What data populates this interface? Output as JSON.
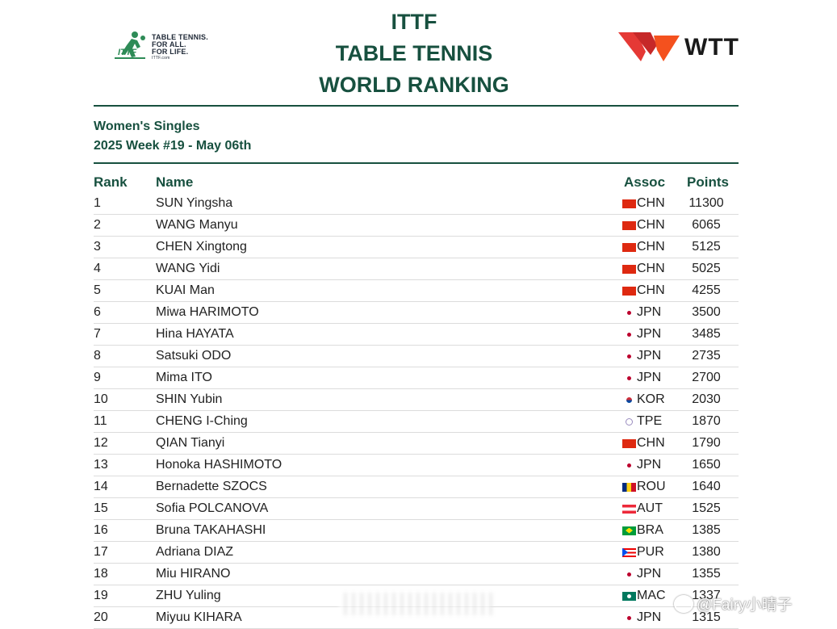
{
  "ittf_logo": {
    "icon": "ittf-player-icon",
    "tagline": [
      "TABLE TENNIS.",
      "FOR ALL.",
      "FOR LIFE."
    ],
    "url": "ITTF.com",
    "color": "#2e8b57"
  },
  "title": {
    "line1": "ITTF",
    "line2": "TABLE TENNIS",
    "line3": "WORLD RANKING",
    "color": "#17503f"
  },
  "wtt_logo": {
    "icon": "wtt-wing-icon",
    "text": "WTT",
    "color": "#e53935"
  },
  "subtitle": {
    "event": "Women's Singles",
    "week": "2025 Week #19 - May 06th"
  },
  "table": {
    "headers": {
      "rank": "Rank",
      "name": "Name",
      "assoc": "Assoc",
      "points": "Points"
    },
    "rows": [
      {
        "rank": "1",
        "name": "SUN Yingsha",
        "flag": "chn",
        "assoc": "CHN",
        "points": "11300"
      },
      {
        "rank": "2",
        "name": "WANG Manyu",
        "flag": "chn",
        "assoc": "CHN",
        "points": "6065"
      },
      {
        "rank": "3",
        "name": "CHEN Xingtong",
        "flag": "chn",
        "assoc": "CHN",
        "points": "5125"
      },
      {
        "rank": "4",
        "name": "WANG Yidi",
        "flag": "chn",
        "assoc": "CHN",
        "points": "5025"
      },
      {
        "rank": "5",
        "name": "KUAI Man",
        "flag": "chn",
        "assoc": "CHN",
        "points": "4255"
      },
      {
        "rank": "6",
        "name": "Miwa HARIMOTO",
        "flag": "jpn",
        "assoc": "JPN",
        "points": "3500"
      },
      {
        "rank": "7",
        "name": "Hina HAYATA",
        "flag": "jpn",
        "assoc": "JPN",
        "points": "3485"
      },
      {
        "rank": "8",
        "name": "Satsuki ODO",
        "flag": "jpn",
        "assoc": "JPN",
        "points": "2735"
      },
      {
        "rank": "9",
        "name": "Mima ITO",
        "flag": "jpn",
        "assoc": "JPN",
        "points": "2700"
      },
      {
        "rank": "10",
        "name": "SHIN Yubin",
        "flag": "kor",
        "assoc": "KOR",
        "points": "2030"
      },
      {
        "rank": "11",
        "name": "CHENG I-Ching",
        "flag": "tpe",
        "assoc": "TPE",
        "points": "1870"
      },
      {
        "rank": "12",
        "name": "QIAN Tianyi",
        "flag": "chn",
        "assoc": "CHN",
        "points": "1790"
      },
      {
        "rank": "13",
        "name": "Honoka HASHIMOTO",
        "flag": "jpn",
        "assoc": "JPN",
        "points": "1650"
      },
      {
        "rank": "14",
        "name": "Bernadette SZOCS",
        "flag": "rou",
        "assoc": "ROU",
        "points": "1640"
      },
      {
        "rank": "15",
        "name": "Sofia POLCANOVA",
        "flag": "aut",
        "assoc": "AUT",
        "points": "1525"
      },
      {
        "rank": "16",
        "name": "Bruna TAKAHASHI",
        "flag": "bra",
        "assoc": "BRA",
        "points": "1385"
      },
      {
        "rank": "17",
        "name": "Adriana DIAZ",
        "flag": "pur",
        "assoc": "PUR",
        "points": "1380"
      },
      {
        "rank": "18",
        "name": "Miu HIRANO",
        "flag": "jpn",
        "assoc": "JPN",
        "points": "1355"
      },
      {
        "rank": "19",
        "name": "ZHU Yuling",
        "flag": "mac",
        "assoc": "MAC",
        "points": "1337"
      },
      {
        "rank": "20",
        "name": "Miyuu KIHARA",
        "flag": "jpn",
        "assoc": "JPN",
        "points": "1315"
      }
    ]
  },
  "watermark": {
    "text": "@Fairy小晴子"
  }
}
